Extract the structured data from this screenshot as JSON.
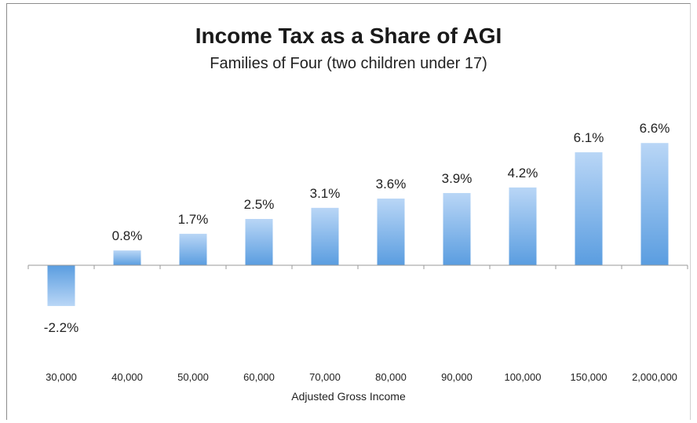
{
  "chart_data": {
    "type": "bar",
    "title": "Income Tax as a Share of AGI",
    "subtitle": "Families of Four (two children under 17)",
    "xlabel": "Adjusted Gross Income",
    "ylabel": "",
    "categories": [
      "30,000",
      "40,000",
      "50,000",
      "60,000",
      "70,000",
      "80,000",
      "90,000",
      "100,000",
      "150,000",
      "2,000,000"
    ],
    "values": [
      -2.2,
      0.8,
      1.7,
      2.5,
      3.1,
      3.6,
      3.9,
      4.2,
      6.1,
      6.6
    ],
    "data_labels": [
      "-2.2%",
      "0.8%",
      "1.7%",
      "2.5%",
      "3.1%",
      "3.6%",
      "3.9%",
      "4.2%",
      "6.1%",
      "6.6%"
    ],
    "bar_color": "#5a9de0",
    "bar_color_light": "#b9d6f6",
    "grid": false,
    "legend": "none"
  }
}
